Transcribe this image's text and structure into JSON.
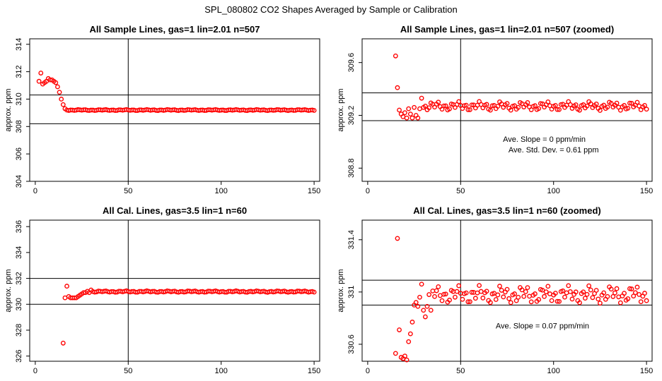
{
  "figure": {
    "title": "SPL_080802  CO2 Shapes Averaged by Sample or Calibration"
  },
  "chart_data": [
    {
      "type": "scatter",
      "title": "All Sample Lines, gas=1 lin=2.01 n=507",
      "xlabel": "",
      "ylabel": "approx. ppm",
      "xlim": [
        -3,
        153
      ],
      "ylim": [
        304,
        314.4
      ],
      "xticks": [
        0,
        50,
        100,
        150
      ],
      "yticks": [
        304,
        306,
        308,
        310,
        312,
        314
      ],
      "hlines": [
        308.2,
        310.3
      ],
      "vlines": [
        50
      ],
      "marker_color": "#ff0000",
      "points": {
        "x": [
          2,
          3,
          4,
          5,
          6,
          7,
          8,
          9,
          10,
          11,
          12,
          13,
          14,
          15,
          16,
          17
        ],
        "y": [
          311.3,
          311.9,
          311.1,
          311.2,
          311.3,
          311.5,
          311.4,
          311.4,
          311.3,
          311.2,
          310.9,
          310.5,
          310.0,
          309.6,
          309.3,
          309.2
        ]
      },
      "flat": {
        "x_start": 18,
        "x_end": 150,
        "base": 309.2,
        "amp": 0.04
      },
      "annotations": []
    },
    {
      "type": "scatter",
      "title": "All Sample Lines, gas=1 lin=2.01 n=507 (zoomed)",
      "xlabel": "",
      "ylabel": "approx. ppm",
      "xlim": [
        -3,
        153
      ],
      "ylim": [
        308.7,
        309.78
      ],
      "xticks": [
        0,
        50,
        100,
        150
      ],
      "yticks": [
        308.8,
        309.2,
        309.6
      ],
      "hlines": [
        309.16,
        309.37
      ],
      "vlines": [
        50
      ],
      "marker_color": "#ff0000",
      "points": {
        "x": [
          15,
          16,
          17,
          18,
          19,
          20,
          21,
          22,
          23,
          24,
          25,
          26,
          27,
          28,
          29,
          30
        ],
        "y": [
          309.65,
          309.41,
          309.24,
          309.21,
          309.19,
          309.22,
          309.18,
          309.25,
          309.21,
          309.18,
          309.26,
          309.2,
          309.18,
          309.25,
          309.33,
          309.26
        ]
      },
      "flat": {
        "x_start": 31,
        "x_end": 150,
        "base": 309.27,
        "amp": 0.035
      },
      "annotations": [
        {
          "text": "Ave. Slope =  0  ppm/min",
          "x": 95,
          "y": 309.0
        },
        {
          "text": "Ave. Std. Dev. =  0.61  ppm",
          "x": 100,
          "y": 308.92
        }
      ]
    },
    {
      "type": "scatter",
      "title": "All Cal. Lines, gas=3.5 lin=1 n=60",
      "xlabel": "",
      "ylabel": "approx. ppm",
      "xlim": [
        -3,
        153
      ],
      "ylim": [
        325.6,
        336.5
      ],
      "xticks": [
        0,
        50,
        100,
        150
      ],
      "yticks": [
        326,
        328,
        330,
        332,
        334,
        336
      ],
      "hlines": [
        330,
        332
      ],
      "vlines": [
        50
      ],
      "marker_color": "#ff0000",
      "points": {
        "x": [
          15,
          16,
          17,
          18,
          19,
          20,
          21,
          22,
          23,
          24,
          25,
          26,
          27,
          28,
          29,
          30
        ],
        "y": [
          327.0,
          330.5,
          331.4,
          330.6,
          330.5,
          330.5,
          330.5,
          330.5,
          330.6,
          330.7,
          330.8,
          330.9,
          330.9,
          331.0,
          330.9,
          331.1
        ]
      },
      "flat": {
        "x_start": 31,
        "x_end": 150,
        "base": 330.98,
        "amp": 0.06
      },
      "annotations": []
    },
    {
      "type": "scatter",
      "title": "All Cal. Lines, gas=3.5 lin=1 n=60 (zoomed)",
      "xlabel": "",
      "ylabel": "approx. ppm",
      "xlim": [
        -3,
        153
      ],
      "ylim": [
        330.47,
        331.55
      ],
      "xticks": [
        0,
        50,
        100,
        150
      ],
      "yticks": [
        330.6,
        331.0,
        331.4
      ],
      "hlines": [
        330.9,
        331.09
      ],
      "vlines": [
        50
      ],
      "marker_color": "#ff0000",
      "points": {
        "x": [
          15,
          16,
          17,
          18,
          19,
          20,
          21,
          22,
          23,
          24,
          25,
          26,
          27,
          28,
          29,
          30,
          31,
          32,
          33,
          34
        ],
        "y": [
          330.53,
          331.41,
          330.71,
          330.5,
          330.49,
          330.51,
          330.48,
          330.62,
          330.68,
          330.77,
          330.9,
          330.92,
          330.89,
          330.96,
          331.06,
          330.86,
          330.81,
          330.89,
          330.98,
          330.86
        ]
      },
      "flat": {
        "x_start": 35,
        "x_end": 150,
        "base": 330.98,
        "amp": 0.07
      },
      "annotations": [
        {
          "text": "Ave. Slope =  0.07  ppm/min",
          "x": 94,
          "y": 330.72
        }
      ]
    }
  ]
}
